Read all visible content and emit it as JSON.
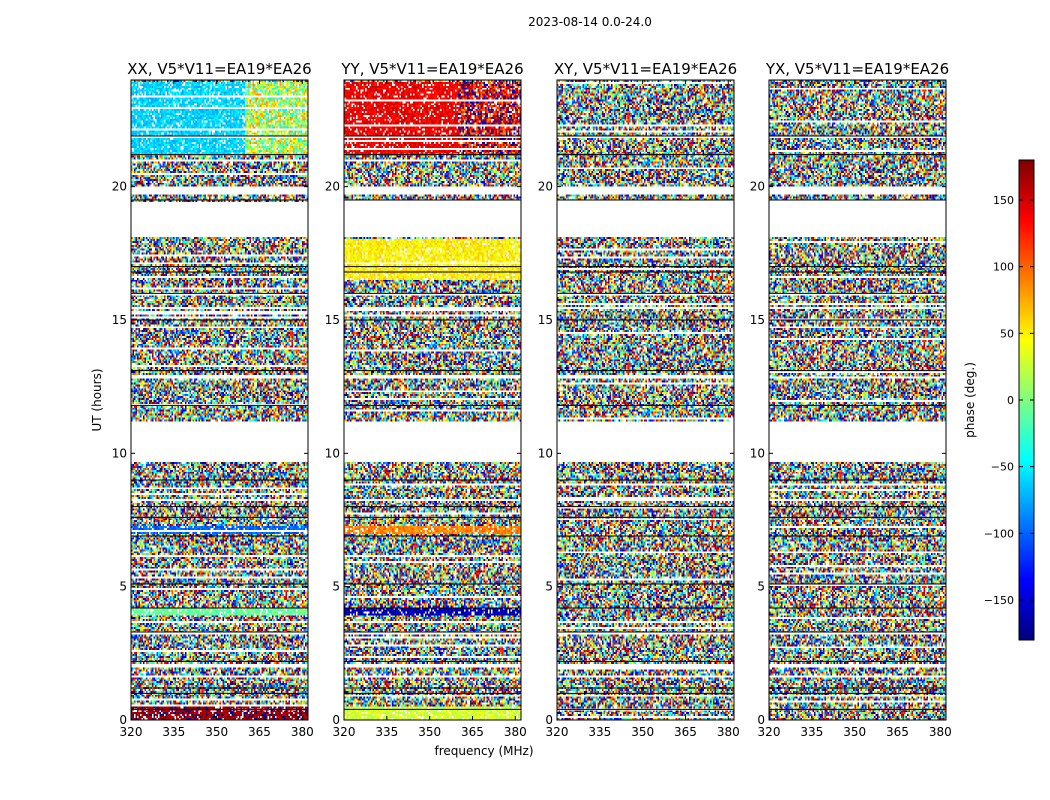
{
  "chart_data": {
    "type": "heatmap",
    "suptitle": "2023-08-14 0.0-24.0",
    "xlabel": "frequency (MHz)",
    "ylabel": "UT (hours)",
    "xlim": [
      320,
      382
    ],
    "ylim": [
      0,
      24
    ],
    "xticks": [
      320,
      335,
      350,
      365,
      380
    ],
    "yticks": [
      0,
      5,
      10,
      15,
      20
    ],
    "panels": [
      {
        "title": "XX, V5*V11=EA19*EA26",
        "polarization": "XX",
        "features": [
          {
            "t_start": 21.2,
            "t_end": 23.9,
            "phase_low_freq": -60,
            "phase_high_freq": 20,
            "freq_break": 360
          },
          {
            "t_start": 7.0,
            "t_end": 7.3,
            "phase": -100
          },
          {
            "t_start": 3.9,
            "t_end": 4.2,
            "phase": -10
          },
          {
            "t_start": 0.0,
            "t_end": 0.5,
            "phase": 170
          }
        ]
      },
      {
        "title": "YY, V5*V11=EA19*EA26",
        "polarization": "YY",
        "features": [
          {
            "t_start": 21.2,
            "t_end": 23.9,
            "phase_low_freq": 140,
            "phase_high_freq": 150,
            "freq_break": 360
          },
          {
            "t_start": 16.5,
            "t_end": 18.0,
            "phase": 50
          },
          {
            "t_start": 7.0,
            "t_end": 7.3,
            "phase": 90
          },
          {
            "t_start": 3.9,
            "t_end": 4.2,
            "phase": -160
          },
          {
            "t_start": 0.0,
            "t_end": 0.5,
            "phase": 30
          }
        ]
      },
      {
        "title": "XY, V5*V11=EA19*EA26",
        "polarization": "XY",
        "features": []
      },
      {
        "title": "YX, V5*V11=EA19*EA26",
        "polarization": "YX",
        "features": []
      }
    ],
    "flagged_ut_ranges": [
      [
        20.0,
        19.7
      ],
      [
        19.4,
        18.1
      ],
      [
        11.2,
        9.7
      ],
      [
        21.8,
        21.9
      ],
      [
        16.0,
        15.9
      ],
      [
        15.5,
        15.4
      ],
      [
        12.9,
        12.8
      ],
      [
        10.0,
        9.9
      ],
      [
        8.3,
        8.2
      ],
      [
        3.3,
        3.2
      ],
      [
        2.1,
        2.0
      ],
      [
        1.7,
        1.6
      ]
    ],
    "flagged_ut_ranges_note": "white gaps with no data (hours)",
    "scan_boundaries": [
      21.9,
      21.2,
      19.5,
      17.0,
      16.8,
      16.0,
      15.0,
      13.1,
      11.8,
      9.0,
      8.0,
      7.6,
      6.9,
      5.1,
      4.2,
      3.3,
      2.2,
      1.2,
      1.0,
      0.4
    ],
    "colorbar": {
      "label": "phase (deg.)",
      "range": [
        -180,
        180
      ],
      "ticks": [
        -150,
        -100,
        -50,
        0,
        50,
        100,
        150
      ],
      "tick_labels": [
        "−150",
        "−100",
        "−50",
        "0",
        "50",
        "100",
        "150"
      ],
      "colormap": "jet",
      "colormap_stops": [
        "#00007f",
        "#0000ff",
        "#00ffff",
        "#7fff7f",
        "#ffff00",
        "#ff0000",
        "#7f0000"
      ]
    }
  }
}
